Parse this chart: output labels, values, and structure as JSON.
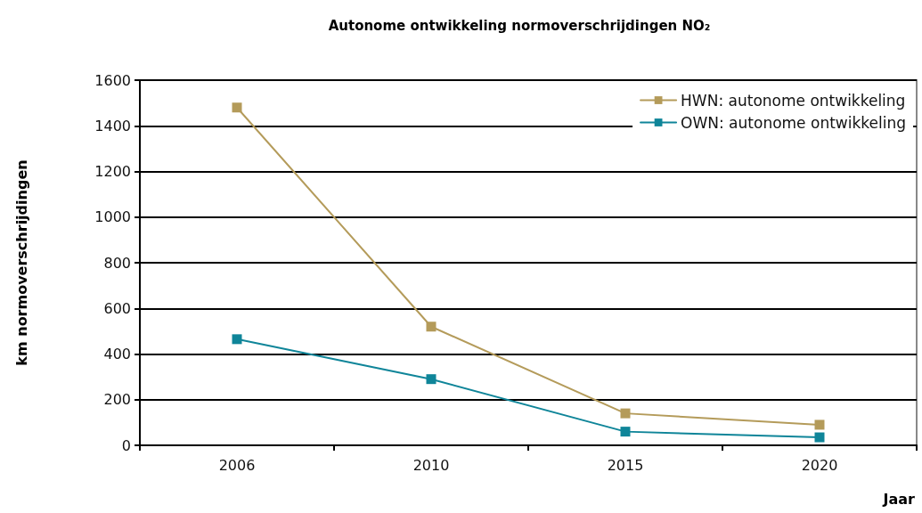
{
  "chart_data": {
    "type": "line",
    "title": "Autonome ontwikkeling normoverschrijdingen NO₂",
    "xlabel": "Jaar",
    "ylabel": "km normoverschrijdingen",
    "categories": [
      "2006",
      "2010",
      "2015",
      "2020"
    ],
    "series": [
      {
        "name": "HWN: autonome ontwikkeling",
        "color": "#b49b5a",
        "values": [
          1480,
          520,
          140,
          90
        ]
      },
      {
        "name": "OWN: autonome ontwikkeling",
        "color": "#0f8599",
        "values": [
          465,
          290,
          60,
          35
        ]
      }
    ],
    "ylim": [
      0,
      1600
    ],
    "yticks": [
      0,
      200,
      400,
      600,
      800,
      1000,
      1200,
      1400,
      1600
    ],
    "grid": "y",
    "legend": "top right",
    "marker": "square",
    "line_style": "solid"
  }
}
